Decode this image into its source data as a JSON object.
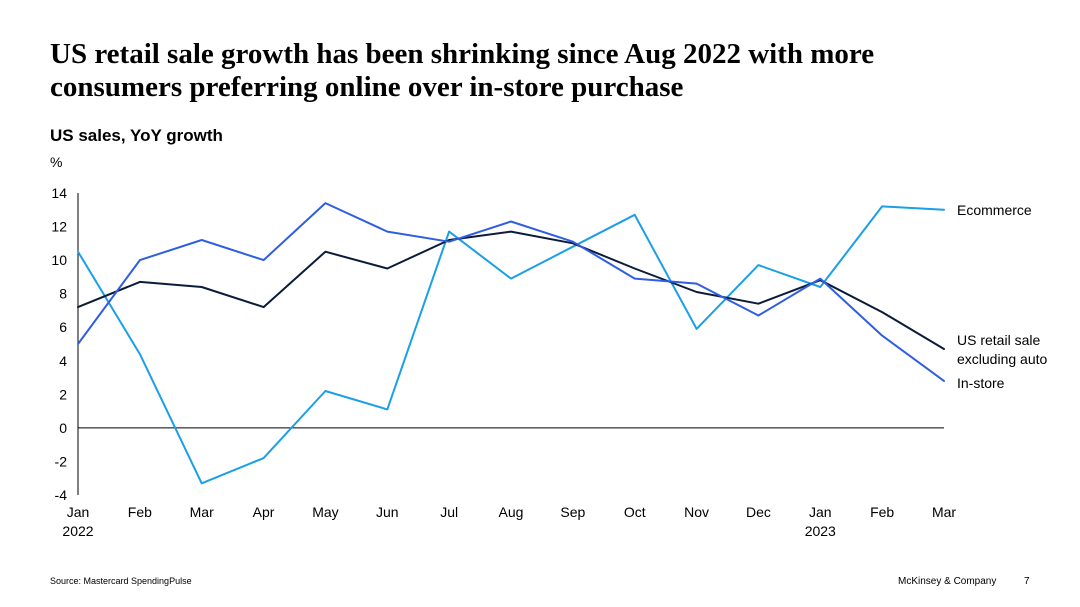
{
  "slide": {
    "title_line1": "US retail sale growth has been shrinking since Aug 2022 with more",
    "title_line2": "consumers preferring online over in-store purchase",
    "source": "Source: Mastercard SpendingPulse",
    "brand": "McKinsey & Company",
    "page_number": "7"
  },
  "chart_data": {
    "type": "line",
    "title": "US sales, YoY growth",
    "ylabel": "%",
    "xlabel": "",
    "ylim": [
      -4,
      14
    ],
    "yticks": [
      -4,
      -2,
      0,
      2,
      4,
      6,
      8,
      10,
      12,
      14
    ],
    "categories": [
      "Jan",
      "Feb",
      "Mar",
      "Apr",
      "May",
      "Jun",
      "Jul",
      "Aug",
      "Sep",
      "Oct",
      "Nov",
      "Dec",
      "Jan",
      "Feb",
      "Mar"
    ],
    "year_labels": [
      {
        "index": 0,
        "label": "2022"
      },
      {
        "index": 12,
        "label": "2023"
      }
    ],
    "series": [
      {
        "name": "Ecommerce",
        "label_lines": [
          "Ecommerce"
        ],
        "color": "#1b9fe8",
        "values": [
          10.5,
          4.4,
          -3.3,
          -1.8,
          2.2,
          1.1,
          11.7,
          8.9,
          10.8,
          12.7,
          5.9,
          9.7,
          8.4,
          13.2,
          13.0
        ]
      },
      {
        "name": "US retail sale excluding auto",
        "label_lines": [
          "US retail sale",
          "excluding auto"
        ],
        "color": "#0b1c3a",
        "values": [
          7.2,
          8.7,
          8.4,
          7.2,
          10.5,
          9.5,
          11.2,
          11.7,
          11.0,
          9.5,
          8.1,
          7.4,
          8.8,
          6.9,
          4.7
        ]
      },
      {
        "name": "In-store",
        "label_lines": [
          "In-store"
        ],
        "color": "#2f5ee0",
        "values": [
          5.0,
          10.0,
          11.2,
          10.0,
          13.4,
          11.7,
          11.1,
          12.3,
          11.1,
          8.9,
          8.6,
          6.7,
          8.9,
          5.5,
          2.8
        ]
      }
    ]
  }
}
